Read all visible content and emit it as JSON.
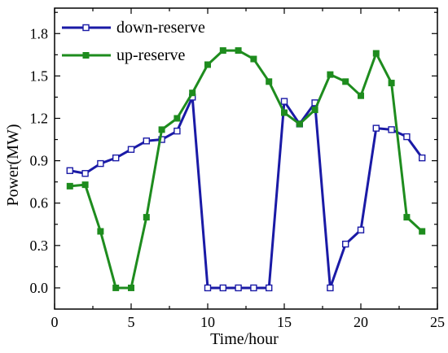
{
  "chart_data": {
    "type": "line",
    "title": "",
    "xlabel": "Time/hour",
    "ylabel": "Power(MW)",
    "xlim": [
      0,
      25
    ],
    "ylim": [
      -0.15,
      1.98
    ],
    "xticks": [
      0,
      5,
      10,
      15,
      20,
      25
    ],
    "yticks": [
      0.0,
      0.3,
      0.6,
      0.9,
      1.2,
      1.5,
      1.8
    ],
    "xtick_labels": [
      "0",
      "5",
      "10",
      "15",
      "20",
      "25"
    ],
    "ytick_labels": [
      "0.0",
      "0.3",
      "0.6",
      "0.9",
      "1.2",
      "1.5",
      "1.8"
    ],
    "grid": false,
    "legend_position": "top-left",
    "x": [
      1,
      2,
      3,
      4,
      5,
      6,
      7,
      8,
      9,
      10,
      11,
      12,
      13,
      14,
      15,
      16,
      17,
      18,
      19,
      20,
      21,
      22,
      23,
      24
    ],
    "series": [
      {
        "name": "down-reserve",
        "color": "#1a1aa6",
        "marker": "open-square",
        "values": [
          0.83,
          0.81,
          0.88,
          0.92,
          0.98,
          1.04,
          1.05,
          1.11,
          1.35,
          0.0,
          0.0,
          0.0,
          0.0,
          0.0,
          1.32,
          1.16,
          1.31,
          0.0,
          0.31,
          0.41,
          1.13,
          1.12,
          1.07,
          0.92
        ]
      },
      {
        "name": "up-reserve",
        "color": "#1e8c1e",
        "marker": "filled-square",
        "values": [
          0.72,
          0.73,
          0.4,
          0.0,
          0.0,
          0.5,
          1.12,
          1.2,
          1.38,
          1.58,
          1.68,
          1.68,
          1.62,
          1.46,
          1.24,
          1.16,
          1.26,
          1.51,
          1.46,
          1.36,
          1.66,
          1.45,
          0.5,
          0.4
        ]
      }
    ]
  }
}
